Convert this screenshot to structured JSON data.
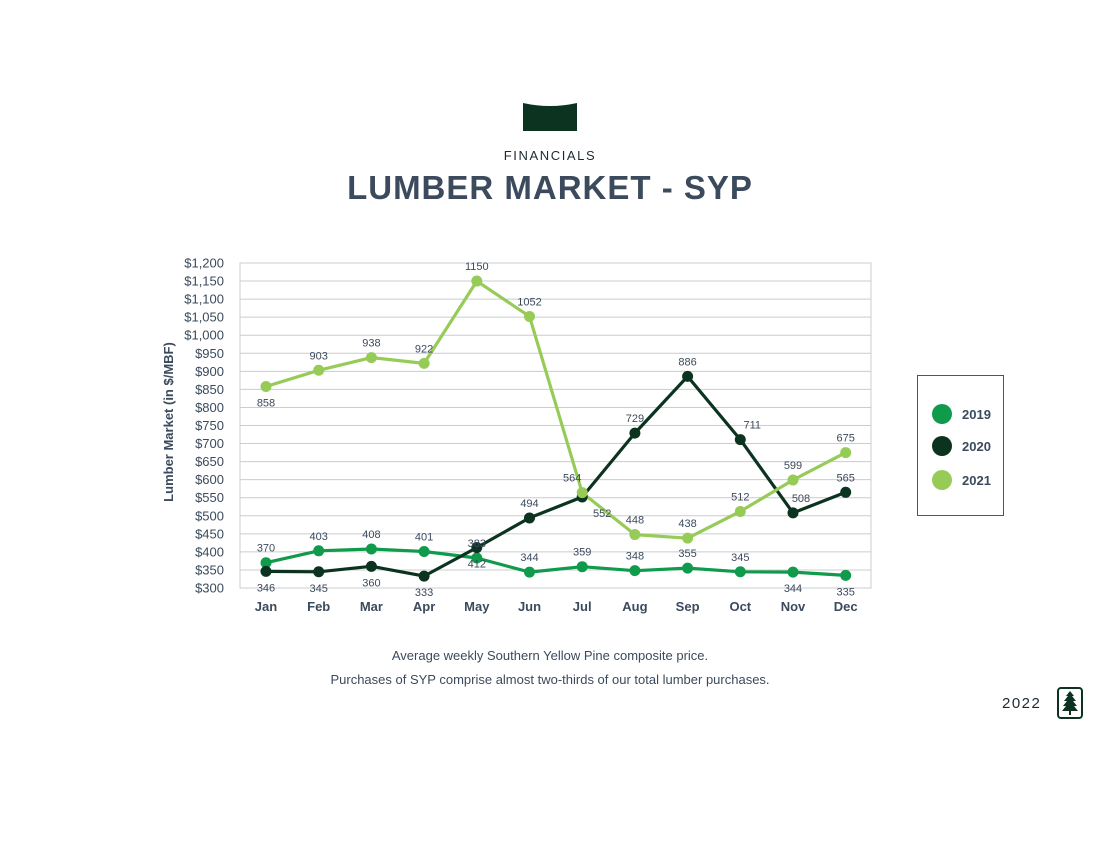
{
  "header": {
    "eyebrow": "FINANCIALS",
    "title": "LUMBER MARKET - SYP"
  },
  "caption": {
    "line1": "Average weekly Southern Yellow Pine composite price.",
    "line2": "Purchases of SYP comprise almost two-thirds of our total lumber purchases."
  },
  "footer": {
    "year": "2022"
  },
  "colors": {
    "s2019": "#109a4c",
    "s2020": "#0b3320",
    "s2021": "#97cb58",
    "axis_text": "#3b4a5c",
    "grid": "#c9ccd1",
    "logo": "#0b3320"
  },
  "chart_data": {
    "type": "line",
    "ylabel": "Lumber Market  (in $/MBF)",
    "categories": [
      "Jan",
      "Feb",
      "Mar",
      "Apr",
      "May",
      "Jun",
      "Jul",
      "Aug",
      "Sep",
      "Oct",
      "Nov",
      "Dec"
    ],
    "ylim": [
      300,
      1200
    ],
    "yticks": [
      300,
      350,
      400,
      450,
      500,
      550,
      600,
      650,
      700,
      750,
      800,
      850,
      900,
      950,
      1000,
      1050,
      1100,
      1150,
      1200
    ],
    "ytick_labels": [
      "$300",
      "$350",
      "$400",
      "$450",
      "$500",
      "$550",
      "$600",
      "$650",
      "$700",
      "$750",
      "$800",
      "$850",
      "$900",
      "$950",
      "$1,000",
      "$1,050",
      "$1,100",
      "$1,150",
      "$1,200"
    ],
    "grid": true,
    "legend": "right",
    "series": [
      {
        "name": "2019",
        "color": "#109a4c",
        "values": [
          370,
          403,
          408,
          401,
          383,
          344,
          359,
          348,
          355,
          345,
          344,
          335
        ],
        "labels": [
          "370",
          "403",
          "408",
          "401",
          "383",
          "344",
          "359",
          "348",
          "355",
          "345",
          "344",
          "335"
        ]
      },
      {
        "name": "2020",
        "color": "#0b3320",
        "values": [
          346,
          345,
          360,
          333,
          412,
          494,
          552,
          729,
          886,
          711,
          508,
          565
        ],
        "labels": [
          "346",
          "345",
          "360",
          "333",
          "412",
          "494",
          "552",
          "729",
          "886",
          "711",
          "508",
          "565"
        ]
      },
      {
        "name": "2021",
        "color": "#97cb58",
        "values": [
          858,
          903,
          938,
          922,
          1150,
          1052,
          564,
          448,
          438,
          512,
          599,
          675
        ],
        "labels": [
          "858",
          "903",
          "938",
          "922",
          "1150",
          "1052",
          "564",
          "448",
          "438",
          "512",
          "599",
          "675"
        ]
      }
    ]
  }
}
